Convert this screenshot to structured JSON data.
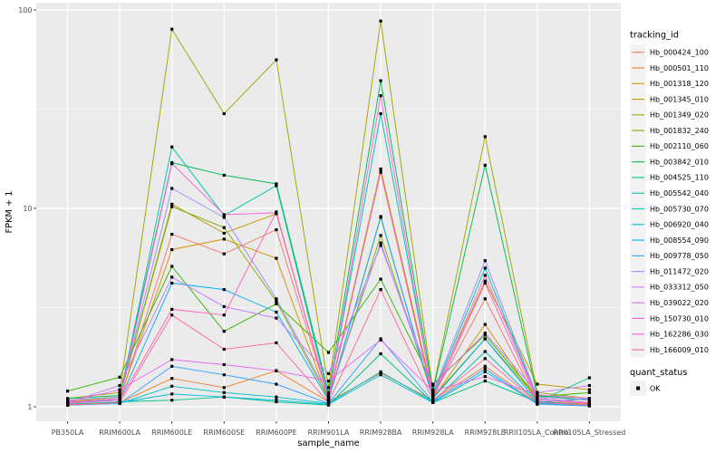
{
  "chart_data": {
    "type": "line",
    "title": "",
    "xlabel": "sample_name",
    "ylabel": "FPKM + 1",
    "y_scale": "log10",
    "ylim": [
      0.85,
      110
    ],
    "grid": "on",
    "legend_position": "right",
    "y_ticks": [
      {
        "label": "100",
        "value": 100
      },
      {
        "label": "10",
        "value": 10
      },
      {
        "label": "1",
        "value": 1
      }
    ],
    "y_minor_values": [
      3.1623,
      31.623
    ],
    "categories": [
      "PB350LA",
      "RRIM600LA",
      "RRIM600LE",
      "RRIM600SE",
      "RRIM600PE",
      "RRIM901LA",
      "RRIM928BA",
      "RRIM928LA",
      "RRIM928LE",
      "RRII105LA_Control",
      "RRII105LA_Stressed"
    ],
    "series": [
      {
        "name": "Hb_000424_100",
        "color": "#F8766D",
        "values": [
          1.05,
          1.08,
          7.4,
          5.9,
          7.8,
          1.1,
          15.5,
          1.12,
          3.5,
          1.06,
          1.03
        ]
      },
      {
        "name": "Hb_000501_110",
        "color": "#EA8331",
        "values": [
          1.02,
          1.05,
          1.39,
          1.25,
          1.52,
          1.06,
          1.48,
          1.08,
          1.6,
          1.04,
          1.02
        ]
      },
      {
        "name": "Hb_001318_120",
        "color": "#D89000",
        "values": [
          1.05,
          1.1,
          6.2,
          7.0,
          5.6,
          1.08,
          9.0,
          1.1,
          2.6,
          1.06,
          1.03
        ]
      },
      {
        "name": "Hb_001345_010",
        "color": "#C09B00",
        "values": [
          1.06,
          1.12,
          10.5,
          7.5,
          9.4,
          1.1,
          15.8,
          1.15,
          4.3,
          1.3,
          1.22
        ]
      },
      {
        "name": "Hb_001349_020",
        "color": "#A3A500",
        "values": [
          1.1,
          1.18,
          80,
          30,
          56,
          1.25,
          88,
          1.22,
          23,
          1.18,
          1.1
        ]
      },
      {
        "name": "Hb_001832_240",
        "color": "#7CAE00",
        "values": [
          1.08,
          1.12,
          10.2,
          8.0,
          3.4,
          1.1,
          7.3,
          1.12,
          2.2,
          1.1,
          1.05
        ]
      },
      {
        "name": "Hb_002110_060",
        "color": "#39B600",
        "values": [
          1.2,
          1.41,
          5.1,
          2.4,
          3.3,
          1.88,
          4.4,
          1.3,
          2.3,
          1.12,
          1.18
        ]
      },
      {
        "name": "Hb_003842_010",
        "color": "#00BB4E",
        "values": [
          1.1,
          1.14,
          17.0,
          14.7,
          13.3,
          1.18,
          44,
          1.2,
          16.5,
          1.14,
          1.08
        ]
      },
      {
        "name": "Hb_004525_110",
        "color": "#00C087",
        "values": [
          1.03,
          1.06,
          1.08,
          1.12,
          1.06,
          1.02,
          1.85,
          1.05,
          1.35,
          1.06,
          1.4
        ]
      },
      {
        "name": "Hb_005542_040",
        "color": "#00C1AB",
        "values": [
          1.05,
          1.1,
          20.4,
          9.2,
          13.0,
          1.12,
          30,
          1.15,
          5.0,
          1.1,
          1.05
        ]
      },
      {
        "name": "Hb_005730_070",
        "color": "#00BFC4",
        "values": [
          1.02,
          1.04,
          1.27,
          1.18,
          1.12,
          1.04,
          1.5,
          1.06,
          1.9,
          1.05,
          1.1
        ]
      },
      {
        "name": "Hb_006920_040",
        "color": "#00BAE0",
        "values": [
          1.02,
          1.05,
          1.16,
          1.12,
          1.08,
          1.03,
          1.45,
          1.05,
          1.5,
          1.04,
          1.02
        ]
      },
      {
        "name": "Hb_008554_090",
        "color": "#00B0F6",
        "values": [
          1.05,
          1.08,
          4.2,
          3.9,
          3.0,
          1.08,
          9.1,
          1.1,
          2.2,
          1.06,
          1.02
        ]
      },
      {
        "name": "Hb_009778_050",
        "color": "#35A2FF",
        "values": [
          1.02,
          1.04,
          1.6,
          1.45,
          1.3,
          1.04,
          2.2,
          1.06,
          1.55,
          1.03,
          1.01
        ]
      },
      {
        "name": "Hb_011472_020",
        "color": "#9590FF",
        "values": [
          1.08,
          1.12,
          12.6,
          9.0,
          3.5,
          1.14,
          6.7,
          1.18,
          5.45,
          1.12,
          1.08
        ]
      },
      {
        "name": "Hb_033312_050",
        "color": "#C77CFF",
        "values": [
          1.05,
          1.28,
          4.5,
          3.2,
          2.8,
          1.47,
          6.5,
          1.28,
          2.35,
          1.18,
          1.28
        ]
      },
      {
        "name": "Hb_039022_020",
        "color": "#E76BF3",
        "values": [
          1.06,
          1.22,
          1.73,
          1.63,
          1.52,
          1.35,
          2.17,
          1.2,
          1.42,
          1.15,
          1.1
        ]
      },
      {
        "name": "Hb_150730_010",
        "color": "#FA62DB",
        "values": [
          1.05,
          1.1,
          16.8,
          9.3,
          9.5,
          1.1,
          37,
          1.12,
          4.6,
          1.1,
          1.05
        ]
      },
      {
        "name": "Hb_162286_030",
        "color": "#FF62BC",
        "values": [
          1.04,
          1.08,
          3.1,
          2.9,
          9.6,
          1.08,
          15.2,
          1.1,
          4.2,
          1.08,
          1.04
        ]
      },
      {
        "name": "Hb_166009_010",
        "color": "#FF6A98",
        "values": [
          1.02,
          1.05,
          2.9,
          1.95,
          2.1,
          1.05,
          3.9,
          1.08,
          1.75,
          1.05,
          1.02
        ]
      }
    ],
    "legends": {
      "tracking": {
        "title": "tracking_id"
      },
      "quant": {
        "title": "quant_status",
        "items": [
          {
            "label": "OK",
            "marker": "black-square"
          }
        ]
      }
    },
    "marker": {
      "shape": "square",
      "color": "#000000",
      "size": 3.2
    },
    "style": {
      "background": "#FFFFFF",
      "panel_bg": "#EBEBEB",
      "grid_color": "#FFFFFF",
      "axis_text_color": "#4D4D4D",
      "tick_color": "#333333",
      "title_color": "#000000",
      "legend_key_bg": "#F2F2F2"
    }
  }
}
